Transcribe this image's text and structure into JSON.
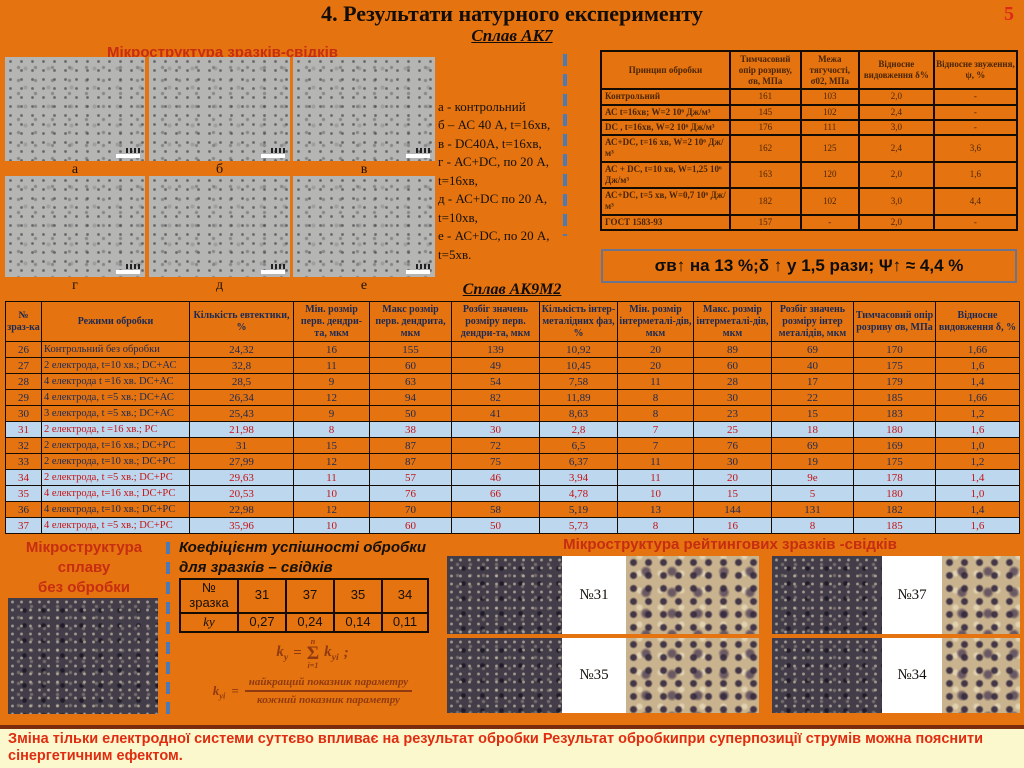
{
  "page": {
    "number": "5",
    "title": "4. Результати натурного експерименту",
    "subtitle": "Сплав АК7"
  },
  "left_micro": {
    "title": "Мікроструктура зразків-свідків",
    "labels": [
      "а",
      "б",
      "в",
      "г",
      "д",
      "е"
    ]
  },
  "legend": {
    "lines": [
      "а - контрольний",
      " б – АС 40 А, t=16хв,",
      "в - DC40А, t=16хв,",
      "г - АС+DC, по 20 А,",
      "t=16хв,",
      "д - АС+DC по 20 А,",
      "t=10хв,",
      "е - АС+DC, по 20 А,",
      "t=5хв."
    ]
  },
  "ak7_table": {
    "headers": [
      "Принцип обробки",
      "Тимчасовий опір розриву, σв, МПа",
      "Межа тягучості, σ02, МПа",
      "Відносне видовження δ%",
      "Відносне звуження, ψ, %"
    ],
    "rows": [
      [
        "Контрольний",
        "161",
        "103",
        "2,0",
        "-"
      ],
      [
        "АС t=16хв; W=2 10⁶ Дж/м³",
        "145",
        "102",
        "2,4",
        "-"
      ],
      [
        "DC , t=16хв, W=2 10⁶ Дж/м³",
        "176",
        "111",
        "3,0",
        "-"
      ],
      [
        "АС+DC, t=16 хв, W=2 10⁶ Дж/м³",
        "162",
        "125",
        "2,4",
        "3,6"
      ],
      [
        "АС + DC, t=10 хв, W=1,25 10⁶ Дж/м³",
        "163",
        "120",
        "2,0",
        "1,6"
      ],
      [
        "АС+DC, t=5 хв, W=0,7 10⁶ Дж/м³",
        "182",
        "102",
        "3,0",
        "4,4"
      ],
      [
        "ГОСТ 1583-93",
        "157",
        "-",
        "2,0",
        "-"
      ]
    ]
  },
  "summary_box": "σв↑ на 13 %;δ ↑ у 1,5 рази;  Ψ↑ ≈ 4,4 %",
  "ak9m2": {
    "title": "Сплав АК9М2",
    "headers": [
      "№ зраз-ка",
      "Режими обробки",
      "Кількість евтектики, %",
      "Мін. розмір перв. дендри-та, мкм",
      "Макс розмір перв. дендрита, мкм",
      "Розбіг значень розміру перв. дендри-та, мкм",
      "Кількість інтер-металідних фаз, %",
      "Мін. розмір інтерметалі-дів, мкм",
      "Макс. розмір інтерметалі-дів, мкм",
      "Розбіг значень розміру інтер металідів, мкм",
      "Тимчасовий опір розриву σв, МПа",
      "Відносне видовження δ, %"
    ],
    "rows": [
      [
        "26",
        "Контрольний без обробки",
        "24,32",
        "16",
        "155",
        "139",
        "10,92",
        "20",
        "89",
        "69",
        "170",
        "1,66"
      ],
      [
        "27",
        "2 електрода, t=10 хв.; DC+АС",
        "32,8",
        "11",
        "60",
        "49",
        "10,45",
        "20",
        "60",
        "40",
        "175",
        "1,6"
      ],
      [
        "28",
        "4 електрода t =16 хв. DC+АС",
        "28,5",
        "9",
        "63",
        "54",
        "7,58",
        "11",
        "28",
        "17",
        "179",
        "1,4"
      ],
      [
        "29",
        "4 електрода, t =5 хв.; DC+АС",
        "26,34",
        "12",
        "94",
        "82",
        "11,89",
        "8",
        "30",
        "22",
        "185",
        "1,66"
      ],
      [
        "30",
        "3 електрода, t =5 хв.; DC+АС",
        "25,43",
        "9",
        "50",
        "41",
        "8,63",
        "8",
        "23",
        "15",
        "183",
        "1,2"
      ],
      [
        "31",
        "2 електрода, t =16 хв.; РС",
        "21,98",
        "8",
        "38",
        "30",
        "2,8",
        "7",
        "25",
        "18",
        "180",
        "1,6"
      ],
      [
        "32",
        "2 електрода, t=16 хв.; DC+РС",
        "31",
        "15",
        "87",
        "72",
        "6,5",
        "7",
        "76",
        "69",
        "169",
        "1,0"
      ],
      [
        "33",
        "2 електрода, t=10 хв.; DC+РС",
        "27,99",
        "12",
        "87",
        "75",
        "6,37",
        "11",
        "30",
        "19",
        "175",
        "1,2"
      ],
      [
        "34",
        "2 електрода, t =5 хв.; DC+РС",
        "29,63",
        "11",
        "57",
        "46",
        "3,94",
        "11",
        "20",
        "9е",
        "178",
        "1,4"
      ],
      [
        "35",
        "4 електрода, t=16 хв.; DC+РС",
        "20,53",
        "10",
        "76",
        "66",
        "4,78",
        "10",
        "15",
        "5",
        "180",
        "1,0"
      ],
      [
        "36",
        "4 електрода, t=10 хв.; DC+РС",
        "22,98",
        "12",
        "70",
        "58",
        "5,19",
        "13",
        "144",
        "131",
        "182",
        "1,4"
      ],
      [
        "37",
        "4 електрода, t =5 хв.; DC+РС",
        "35,96",
        "10",
        "60",
        "50",
        "5,73",
        "8",
        "16",
        "8",
        "185",
        "1,6"
      ]
    ]
  },
  "bottom_left": {
    "title_lines": [
      "Мікроструктура",
      "сплаву",
      "без обробки"
    ]
  },
  "coef": {
    "title_line1": "Коефіцієнт успішності обробки",
    "title_line2": "для зразків   – свідків",
    "table_rows": [
      [
        "№ зразка",
        "31",
        "37",
        "35",
        "34"
      ],
      [
        "kу",
        "0,27",
        "0,24",
        "0,14",
        "0,11"
      ]
    ]
  },
  "formula": {
    "k": "k",
    "sub_y": "у",
    "sub_yi": "уі",
    "eq": "=",
    "sum_top": "n",
    "sum_sym": "Σ",
    "sum_bot": "i=1",
    "semi": ";",
    "numerator": "найкращий  показник  параметру",
    "denominator": "кожний  показник  параметру"
  },
  "rating": {
    "title": "Мікроструктура рейтингових зразків      -свідків",
    "labels": [
      "№31",
      "№37",
      "№35",
      "№34"
    ]
  },
  "footer": {
    "text": "Зміна тільки електродної системи суттєво впливає на результат обробки Результат  обробкипри суперпозиції струмів можна пояснити сінергетичним ефектом."
  }
}
